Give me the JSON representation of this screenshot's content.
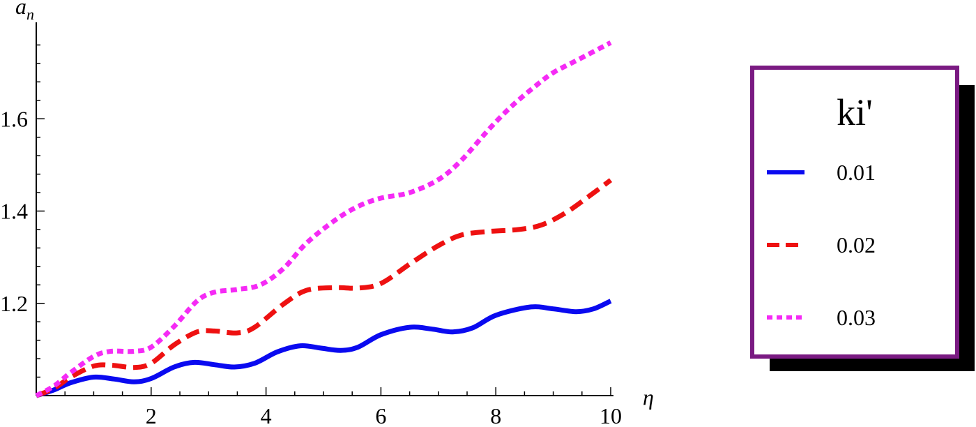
{
  "chart_data": {
    "type": "line",
    "ylabel_main": "a",
    "ylabel_sub": "n",
    "xlabel": "η",
    "xlim": [
      0,
      10
    ],
    "ylim": [
      1.0,
      1.8
    ],
    "x_ticks": [
      2,
      4,
      6,
      8,
      10
    ],
    "x_tick_labels": [
      "2",
      "4",
      "6",
      "8",
      "10"
    ],
    "y_ticks": [
      1.2,
      1.4,
      1.6
    ],
    "y_tick_labels": [
      "1.2",
      "1.4",
      "1.6"
    ],
    "legend_title": "ki'",
    "legend_position": "right",
    "grid": false,
    "series": [
      {
        "name": "0.01",
        "color": "#0a0af0",
        "style": "solid",
        "x": [
          0,
          0.3,
          0.6,
          1.0,
          1.35,
          1.7,
          2.0,
          2.4,
          2.75,
          3.1,
          3.45,
          3.8,
          4.2,
          4.6,
          4.95,
          5.3,
          5.6,
          6.0,
          6.5,
          6.9,
          7.25,
          7.6,
          8.0,
          8.6,
          9.0,
          9.4,
          9.7,
          10.0
        ],
        "values": [
          1.0,
          1.012,
          1.028,
          1.04,
          1.036,
          1.03,
          1.037,
          1.062,
          1.072,
          1.067,
          1.062,
          1.07,
          1.095,
          1.108,
          1.103,
          1.098,
          1.105,
          1.132,
          1.148,
          1.144,
          1.138,
          1.147,
          1.174,
          1.192,
          1.188,
          1.182,
          1.188,
          1.205
        ]
      },
      {
        "name": "0.02",
        "color": "#ee1111",
        "style": "dashed",
        "x": [
          0,
          0.3,
          0.6,
          1.0,
          1.3,
          1.7,
          2.0,
          2.4,
          2.8,
          3.1,
          3.5,
          3.8,
          4.3,
          4.7,
          5.2,
          5.6,
          6.0,
          6.5,
          7.0,
          7.4,
          7.9,
          8.4,
          8.8,
          9.2,
          9.6,
          10.0
        ],
        "values": [
          1.0,
          1.015,
          1.04,
          1.064,
          1.066,
          1.061,
          1.07,
          1.11,
          1.138,
          1.14,
          1.136,
          1.148,
          1.198,
          1.228,
          1.234,
          1.233,
          1.243,
          1.285,
          1.325,
          1.348,
          1.356,
          1.36,
          1.37,
          1.395,
          1.43,
          1.467
        ]
      },
      {
        "name": "0.03",
        "color": "#f52af5",
        "style": "dotted",
        "x": [
          0,
          0.3,
          0.6,
          1.0,
          1.3,
          1.7,
          2.0,
          2.4,
          2.8,
          3.1,
          3.5,
          3.9,
          4.3,
          4.7,
          5.2,
          5.6,
          6.0,
          6.5,
          7.0,
          7.4,
          7.9,
          8.3,
          8.7,
          9.0,
          9.4,
          10.0
        ],
        "values": [
          1.0,
          1.02,
          1.05,
          1.085,
          1.096,
          1.096,
          1.105,
          1.15,
          1.205,
          1.224,
          1.23,
          1.24,
          1.275,
          1.33,
          1.38,
          1.41,
          1.428,
          1.44,
          1.468,
          1.51,
          1.58,
          1.63,
          1.672,
          1.7,
          1.726,
          1.765
        ]
      }
    ]
  }
}
